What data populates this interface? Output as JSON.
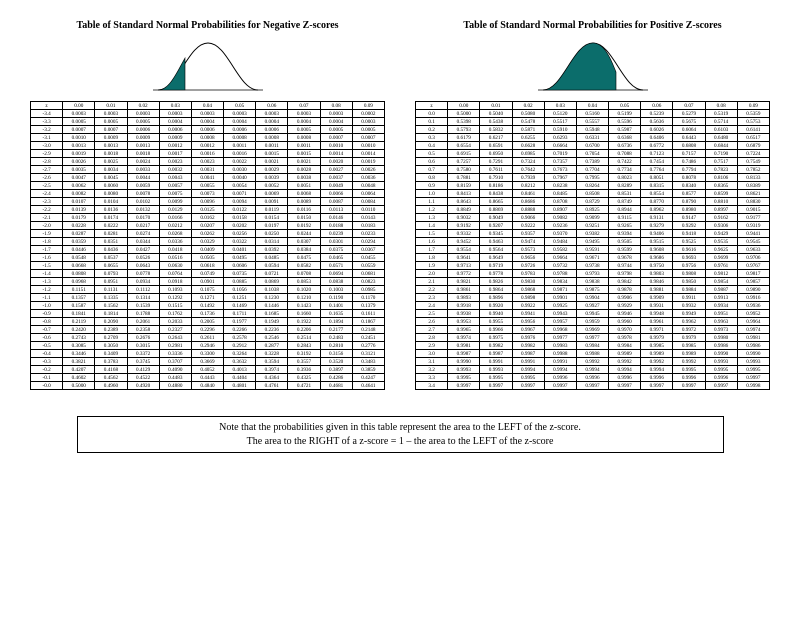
{
  "curve_fill_color": "#0b6d6b",
  "negative": {
    "title": "Table of Standard Normal Probabilities for Negative Z-scores",
    "header": [
      "z",
      "0.00",
      "0.01",
      "0.02",
      "0.03",
      "0.04",
      "0.05",
      "0.06",
      "0.07",
      "0.08",
      "0.09"
    ],
    "rows": [
      [
        "-3.4",
        "0.0003",
        "0.0003",
        "0.0003",
        "0.0003",
        "0.0003",
        "0.0003",
        "0.0003",
        "0.0003",
        "0.0003",
        "0.0002"
      ],
      [
        "-3.3",
        "0.0005",
        "0.0005",
        "0.0005",
        "0.0004",
        "0.0004",
        "0.0004",
        "0.0004",
        "0.0004",
        "0.0004",
        "0.0003"
      ],
      [
        "-3.2",
        "0.0007",
        "0.0007",
        "0.0006",
        "0.0006",
        "0.0006",
        "0.0006",
        "0.0006",
        "0.0005",
        "0.0005",
        "0.0005"
      ],
      [
        "-3.1",
        "0.0010",
        "0.0009",
        "0.0009",
        "0.0009",
        "0.0008",
        "0.0008",
        "0.0008",
        "0.0008",
        "0.0007",
        "0.0007"
      ],
      [
        "-3.0",
        "0.0013",
        "0.0013",
        "0.0013",
        "0.0012",
        "0.0012",
        "0.0011",
        "0.0011",
        "0.0011",
        "0.0010",
        "0.0010"
      ],
      [
        "-2.9",
        "0.0019",
        "0.0018",
        "0.0018",
        "0.0017",
        "0.0016",
        "0.0016",
        "0.0015",
        "0.0015",
        "0.0014",
        "0.0014"
      ],
      [
        "-2.8",
        "0.0026",
        "0.0025",
        "0.0024",
        "0.0023",
        "0.0023",
        "0.0022",
        "0.0021",
        "0.0021",
        "0.0020",
        "0.0019"
      ],
      [
        "-2.7",
        "0.0035",
        "0.0034",
        "0.0033",
        "0.0032",
        "0.0031",
        "0.0030",
        "0.0029",
        "0.0028",
        "0.0027",
        "0.0026"
      ],
      [
        "-2.6",
        "0.0047",
        "0.0045",
        "0.0044",
        "0.0043",
        "0.0041",
        "0.0040",
        "0.0039",
        "0.0038",
        "0.0037",
        "0.0036"
      ],
      [
        "-2.5",
        "0.0062",
        "0.0060",
        "0.0059",
        "0.0057",
        "0.0055",
        "0.0054",
        "0.0052",
        "0.0051",
        "0.0049",
        "0.0048"
      ],
      [
        "-2.4",
        "0.0082",
        "0.0080",
        "0.0078",
        "0.0075",
        "0.0073",
        "0.0071",
        "0.0069",
        "0.0068",
        "0.0066",
        "0.0064"
      ],
      [
        "-2.3",
        "0.0107",
        "0.0104",
        "0.0102",
        "0.0099",
        "0.0096",
        "0.0094",
        "0.0091",
        "0.0089",
        "0.0087",
        "0.0084"
      ],
      [
        "-2.2",
        "0.0139",
        "0.0136",
        "0.0132",
        "0.0129",
        "0.0125",
        "0.0122",
        "0.0119",
        "0.0116",
        "0.0113",
        "0.0110"
      ],
      [
        "-2.1",
        "0.0179",
        "0.0174",
        "0.0170",
        "0.0166",
        "0.0162",
        "0.0158",
        "0.0154",
        "0.0150",
        "0.0146",
        "0.0143"
      ],
      [
        "-2.0",
        "0.0228",
        "0.0222",
        "0.0217",
        "0.0212",
        "0.0207",
        "0.0202",
        "0.0197",
        "0.0192",
        "0.0188",
        "0.0183"
      ],
      [
        "-1.9",
        "0.0287",
        "0.0281",
        "0.0274",
        "0.0268",
        "0.0262",
        "0.0256",
        "0.0250",
        "0.0244",
        "0.0239",
        "0.0233"
      ],
      [
        "-1.8",
        "0.0359",
        "0.0351",
        "0.0344",
        "0.0336",
        "0.0329",
        "0.0322",
        "0.0314",
        "0.0307",
        "0.0301",
        "0.0294"
      ],
      [
        "-1.7",
        "0.0446",
        "0.0436",
        "0.0427",
        "0.0418",
        "0.0409",
        "0.0401",
        "0.0392",
        "0.0384",
        "0.0375",
        "0.0367"
      ],
      [
        "-1.6",
        "0.0548",
        "0.0537",
        "0.0526",
        "0.0516",
        "0.0505",
        "0.0495",
        "0.0485",
        "0.0475",
        "0.0465",
        "0.0455"
      ],
      [
        "-1.5",
        "0.0668",
        "0.0655",
        "0.0643",
        "0.0630",
        "0.0618",
        "0.0606",
        "0.0594",
        "0.0582",
        "0.0571",
        "0.0559"
      ],
      [
        "-1.4",
        "0.0808",
        "0.0793",
        "0.0778",
        "0.0764",
        "0.0749",
        "0.0735",
        "0.0721",
        "0.0708",
        "0.0694",
        "0.0681"
      ],
      [
        "-1.3",
        "0.0968",
        "0.0951",
        "0.0934",
        "0.0918",
        "0.0901",
        "0.0885",
        "0.0869",
        "0.0853",
        "0.0838",
        "0.0823"
      ],
      [
        "-1.2",
        "0.1151",
        "0.1131",
        "0.1112",
        "0.1093",
        "0.1075",
        "0.1056",
        "0.1038",
        "0.1020",
        "0.1003",
        "0.0985"
      ],
      [
        "-1.1",
        "0.1357",
        "0.1335",
        "0.1314",
        "0.1292",
        "0.1271",
        "0.1251",
        "0.1230",
        "0.1210",
        "0.1190",
        "0.1170"
      ],
      [
        "-1.0",
        "0.1587",
        "0.1562",
        "0.1539",
        "0.1515",
        "0.1492",
        "0.1469",
        "0.1446",
        "0.1423",
        "0.1401",
        "0.1379"
      ],
      [
        "-0.9",
        "0.1841",
        "0.1814",
        "0.1788",
        "0.1762",
        "0.1736",
        "0.1711",
        "0.1685",
        "0.1660",
        "0.1635",
        "0.1611"
      ],
      [
        "-0.8",
        "0.2119",
        "0.2090",
        "0.2061",
        "0.2033",
        "0.2005",
        "0.1977",
        "0.1949",
        "0.1922",
        "0.1894",
        "0.1867"
      ],
      [
        "-0.7",
        "0.2420",
        "0.2389",
        "0.2358",
        "0.2327",
        "0.2296",
        "0.2266",
        "0.2236",
        "0.2206",
        "0.2177",
        "0.2148"
      ],
      [
        "-0.6",
        "0.2743",
        "0.2709",
        "0.2676",
        "0.2643",
        "0.2611",
        "0.2578",
        "0.2546",
        "0.2514",
        "0.2483",
        "0.2451"
      ],
      [
        "-0.5",
        "0.3085",
        "0.3050",
        "0.3015",
        "0.2981",
        "0.2946",
        "0.2912",
        "0.2877",
        "0.2843",
        "0.2810",
        "0.2776"
      ],
      [
        "-0.4",
        "0.3446",
        "0.3409",
        "0.3372",
        "0.3336",
        "0.3300",
        "0.3264",
        "0.3228",
        "0.3192",
        "0.3156",
        "0.3121"
      ],
      [
        "-0.3",
        "0.3821",
        "0.3783",
        "0.3745",
        "0.3707",
        "0.3669",
        "0.3632",
        "0.3594",
        "0.3557",
        "0.3520",
        "0.3483"
      ],
      [
        "-0.2",
        "0.4207",
        "0.4168",
        "0.4129",
        "0.4090",
        "0.4052",
        "0.4013",
        "0.3974",
        "0.3936",
        "0.3897",
        "0.3859"
      ],
      [
        "-0.1",
        "0.4602",
        "0.4562",
        "0.4522",
        "0.4483",
        "0.4443",
        "0.4404",
        "0.4364",
        "0.4325",
        "0.4286",
        "0.4247"
      ],
      [
        "-0.0",
        "0.5000",
        "0.4960",
        "0.4920",
        "0.4880",
        "0.4840",
        "0.4801",
        "0.4761",
        "0.4721",
        "0.4681",
        "0.4641"
      ]
    ]
  },
  "positive": {
    "title": "Table of Standard Normal Probabilities for Positive Z-scores",
    "header": [
      "z",
      "0.00",
      "0.01",
      "0.02",
      "0.03",
      "0.04",
      "0.05",
      "0.06",
      "0.07",
      "0.08",
      "0.09"
    ],
    "rows": [
      [
        "0.0",
        "0.5000",
        "0.5040",
        "0.5080",
        "0.5120",
        "0.5160",
        "0.5199",
        "0.5239",
        "0.5279",
        "0.5319",
        "0.5359"
      ],
      [
        "0.1",
        "0.5398",
        "0.5438",
        "0.5478",
        "0.5517",
        "0.5557",
        "0.5596",
        "0.5636",
        "0.5675",
        "0.5714",
        "0.5753"
      ],
      [
        "0.2",
        "0.5793",
        "0.5832",
        "0.5871",
        "0.5910",
        "0.5948",
        "0.5987",
        "0.6026",
        "0.6064",
        "0.6103",
        "0.6141"
      ],
      [
        "0.3",
        "0.6179",
        "0.6217",
        "0.6255",
        "0.6293",
        "0.6331",
        "0.6368",
        "0.6406",
        "0.6443",
        "0.6480",
        "0.6517"
      ],
      [
        "0.4",
        "0.6554",
        "0.6591",
        "0.6628",
        "0.6664",
        "0.6700",
        "0.6736",
        "0.6772",
        "0.6808",
        "0.6844",
        "0.6879"
      ],
      [
        "0.5",
        "0.6915",
        "0.6950",
        "0.6985",
        "0.7019",
        "0.7054",
        "0.7088",
        "0.7123",
        "0.7157",
        "0.7190",
        "0.7224"
      ],
      [
        "0.6",
        "0.7257",
        "0.7291",
        "0.7324",
        "0.7357",
        "0.7389",
        "0.7422",
        "0.7454",
        "0.7486",
        "0.7517",
        "0.7549"
      ],
      [
        "0.7",
        "0.7580",
        "0.7611",
        "0.7642",
        "0.7673",
        "0.7704",
        "0.7734",
        "0.7764",
        "0.7794",
        "0.7823",
        "0.7852"
      ],
      [
        "0.8",
        "0.7881",
        "0.7910",
        "0.7939",
        "0.7967",
        "0.7995",
        "0.8023",
        "0.8051",
        "0.8078",
        "0.8106",
        "0.8133"
      ],
      [
        "0.9",
        "0.8159",
        "0.8186",
        "0.8212",
        "0.8238",
        "0.8264",
        "0.8289",
        "0.8315",
        "0.8340",
        "0.8365",
        "0.8389"
      ],
      [
        "1.0",
        "0.8413",
        "0.8438",
        "0.8461",
        "0.8485",
        "0.8508",
        "0.8531",
        "0.8554",
        "0.8577",
        "0.8599",
        "0.8621"
      ],
      [
        "1.1",
        "0.8643",
        "0.8665",
        "0.8686",
        "0.8708",
        "0.8729",
        "0.8749",
        "0.8770",
        "0.8790",
        "0.8810",
        "0.8830"
      ],
      [
        "1.2",
        "0.8849",
        "0.8869",
        "0.8888",
        "0.8907",
        "0.8925",
        "0.8944",
        "0.8962",
        "0.8980",
        "0.8997",
        "0.9015"
      ],
      [
        "1.3",
        "0.9032",
        "0.9049",
        "0.9066",
        "0.9082",
        "0.9099",
        "0.9115",
        "0.9131",
        "0.9147",
        "0.9162",
        "0.9177"
      ],
      [
        "1.4",
        "0.9192",
        "0.9207",
        "0.9222",
        "0.9236",
        "0.9251",
        "0.9265",
        "0.9279",
        "0.9292",
        "0.9306",
        "0.9319"
      ],
      [
        "1.5",
        "0.9332",
        "0.9345",
        "0.9357",
        "0.9370",
        "0.9382",
        "0.9394",
        "0.9406",
        "0.9418",
        "0.9429",
        "0.9441"
      ],
      [
        "1.6",
        "0.9452",
        "0.9463",
        "0.9474",
        "0.9484",
        "0.9495",
        "0.9505",
        "0.9515",
        "0.9525",
        "0.9535",
        "0.9545"
      ],
      [
        "1.7",
        "0.9554",
        "0.9564",
        "0.9573",
        "0.9582",
        "0.9591",
        "0.9599",
        "0.9608",
        "0.9616",
        "0.9625",
        "0.9633"
      ],
      [
        "1.8",
        "0.9641",
        "0.9649",
        "0.9656",
        "0.9664",
        "0.9671",
        "0.9678",
        "0.9686",
        "0.9693",
        "0.9699",
        "0.9706"
      ],
      [
        "1.9",
        "0.9713",
        "0.9719",
        "0.9726",
        "0.9732",
        "0.9738",
        "0.9744",
        "0.9750",
        "0.9756",
        "0.9761",
        "0.9767"
      ],
      [
        "2.0",
        "0.9772",
        "0.9778",
        "0.9783",
        "0.9788",
        "0.9793",
        "0.9798",
        "0.9803",
        "0.9808",
        "0.9812",
        "0.9817"
      ],
      [
        "2.1",
        "0.9821",
        "0.9826",
        "0.9830",
        "0.9834",
        "0.9838",
        "0.9842",
        "0.9846",
        "0.9850",
        "0.9854",
        "0.9857"
      ],
      [
        "2.2",
        "0.9861",
        "0.9864",
        "0.9868",
        "0.9871",
        "0.9875",
        "0.9878",
        "0.9881",
        "0.9884",
        "0.9887",
        "0.9890"
      ],
      [
        "2.3",
        "0.9893",
        "0.9896",
        "0.9898",
        "0.9901",
        "0.9904",
        "0.9906",
        "0.9909",
        "0.9911",
        "0.9913",
        "0.9916"
      ],
      [
        "2.4",
        "0.9918",
        "0.9920",
        "0.9922",
        "0.9925",
        "0.9927",
        "0.9929",
        "0.9931",
        "0.9932",
        "0.9934",
        "0.9936"
      ],
      [
        "2.5",
        "0.9938",
        "0.9940",
        "0.9941",
        "0.9943",
        "0.9945",
        "0.9946",
        "0.9948",
        "0.9949",
        "0.9951",
        "0.9952"
      ],
      [
        "2.6",
        "0.9953",
        "0.9955",
        "0.9956",
        "0.9957",
        "0.9959",
        "0.9960",
        "0.9961",
        "0.9962",
        "0.9963",
        "0.9964"
      ],
      [
        "2.7",
        "0.9965",
        "0.9966",
        "0.9967",
        "0.9968",
        "0.9969",
        "0.9970",
        "0.9971",
        "0.9972",
        "0.9973",
        "0.9974"
      ],
      [
        "2.8",
        "0.9974",
        "0.9975",
        "0.9976",
        "0.9977",
        "0.9977",
        "0.9978",
        "0.9979",
        "0.9979",
        "0.9980",
        "0.9981"
      ],
      [
        "2.9",
        "0.9981",
        "0.9982",
        "0.9982",
        "0.9983",
        "0.9984",
        "0.9984",
        "0.9985",
        "0.9985",
        "0.9986",
        "0.9986"
      ],
      [
        "3.0",
        "0.9987",
        "0.9987",
        "0.9987",
        "0.9988",
        "0.9988",
        "0.9989",
        "0.9989",
        "0.9989",
        "0.9990",
        "0.9990"
      ],
      [
        "3.1",
        "0.9990",
        "0.9991",
        "0.9991",
        "0.9991",
        "0.9992",
        "0.9992",
        "0.9992",
        "0.9992",
        "0.9993",
        "0.9993"
      ],
      [
        "3.2",
        "0.9993",
        "0.9993",
        "0.9994",
        "0.9994",
        "0.9994",
        "0.9994",
        "0.9994",
        "0.9995",
        "0.9995",
        "0.9995"
      ],
      [
        "3.3",
        "0.9995",
        "0.9995",
        "0.9995",
        "0.9996",
        "0.9996",
        "0.9996",
        "0.9996",
        "0.9996",
        "0.9996",
        "0.9997"
      ],
      [
        "3.4",
        "0.9997",
        "0.9997",
        "0.9997",
        "0.9997",
        "0.9997",
        "0.9997",
        "0.9997",
        "0.9997",
        "0.9997",
        "0.9998"
      ]
    ]
  },
  "note": {
    "line1": "Note that the probabilities given in this table represent the area to the  LEFT of the z-score.",
    "line2": "The area to the RIGHT of a z-score = 1 – the area to the LEFT of the z-score"
  }
}
